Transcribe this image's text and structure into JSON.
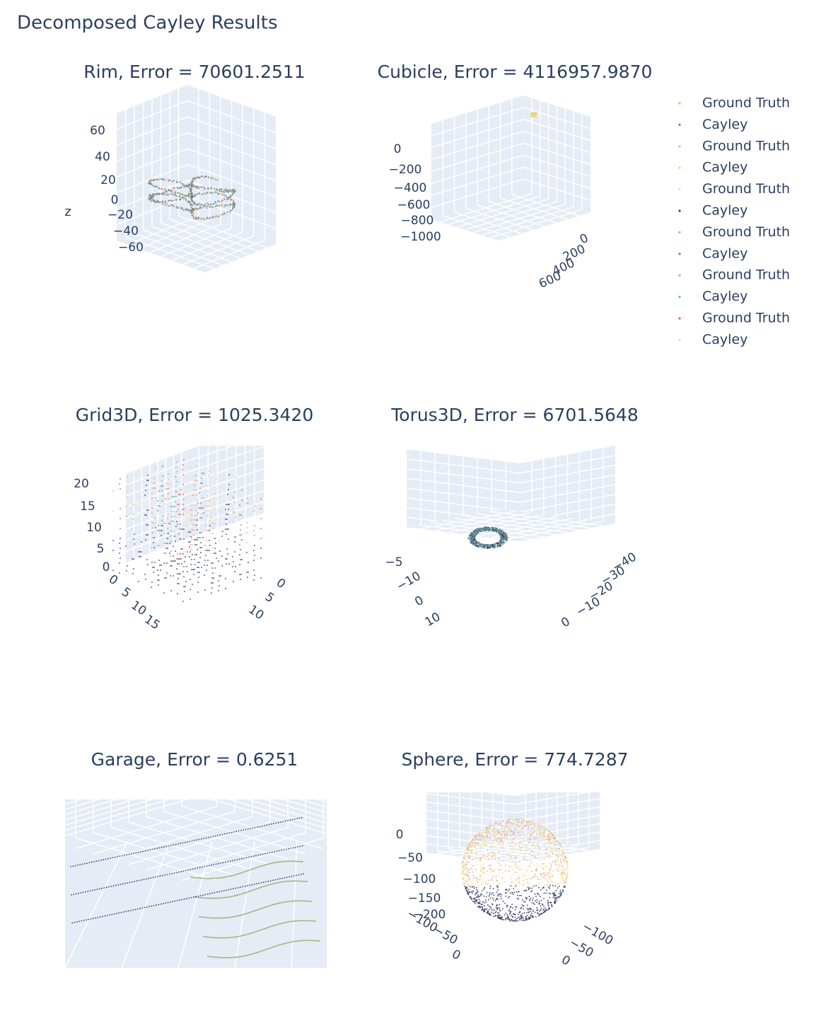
{
  "title": "Decomposed Cayley Results",
  "legend": [
    {
      "name": "Ground Truth",
      "color": "#f4a582"
    },
    {
      "name": "Cayley",
      "color": "#5b8a8f"
    },
    {
      "name": "Ground Truth",
      "color": "#f8b08a"
    },
    {
      "name": "Cayley",
      "color": "#e6d86b"
    },
    {
      "name": "Ground Truth",
      "color": "#f2d4cf"
    },
    {
      "name": "Cayley",
      "color": "#3c3f6e"
    },
    {
      "name": "Ground Truth",
      "color": "#f29f75"
    },
    {
      "name": "Cayley",
      "color": "#5d8c82"
    },
    {
      "name": "Ground Truth",
      "color": "#f2a05a"
    },
    {
      "name": "Cayley",
      "color": "#6fb8a0"
    },
    {
      "name": "Ground Truth",
      "color": "#ef5a3c"
    },
    {
      "name": "Cayley",
      "color": "#f1e38a"
    }
  ],
  "chart_data": [
    {
      "type": "scatter3d",
      "title": "Rim, Error = 70601.2511",
      "zaxis_title": "z",
      "zticks": [
        60,
        40,
        20,
        0,
        {
          "value": -20,
          "label": "−20"
        },
        {
          "value": -40,
          "label": "−40"
        },
        {
          "value": -60,
          "label": "−60"
        }
      ]
    },
    {
      "type": "scatter3d",
      "title": "Cubicle, Error = 4116957.9870",
      "zticks": [
        0,
        {
          "value": -200,
          "label": "−200"
        },
        {
          "value": -400,
          "label": "−400"
        },
        {
          "value": -600,
          "label": "−600"
        },
        {
          "value": -800,
          "label": "−800"
        },
        {
          "value": -1000,
          "label": "−1000"
        }
      ],
      "xticks": [
        0,
        200,
        400,
        600
      ]
    },
    {
      "type": "scatter3d",
      "title": "Grid3D, Error = 1025.3420",
      "zticks": [
        20,
        15,
        10,
        5,
        0
      ],
      "xticks": [
        0,
        5,
        10,
        15
      ],
      "yticks": [
        0,
        5,
        10
      ]
    },
    {
      "type": "scatter3d",
      "title": "Torus3D, Error = 6701.5648",
      "zticks": [
        {
          "value": -5,
          "label": "−5"
        }
      ],
      "yticks": [
        {
          "value": -10,
          "label": "−10"
        },
        0,
        10
      ],
      "xticks": [
        {
          "value": -40,
          "label": "−40"
        },
        {
          "value": -30,
          "label": "−30"
        },
        {
          "value": -20,
          "label": "−20"
        },
        {
          "value": -10,
          "label": "−10"
        },
        0
      ]
    },
    {
      "type": "scatter3d",
      "title": "Garage, Error = 0.6251"
    },
    {
      "type": "scatter3d",
      "title": "Sphere, Error = 774.7287",
      "zticks": [
        0,
        {
          "value": -50,
          "label": "−50"
        },
        {
          "value": -100,
          "label": "−100"
        },
        {
          "value": -150,
          "label": "−150"
        },
        {
          "value": -200,
          "label": "−200"
        }
      ],
      "yticks": [
        {
          "value": -100,
          "label": "−100"
        },
        {
          "value": -50,
          "label": "−50"
        },
        0
      ],
      "xticks": [
        {
          "value": -100,
          "label": "−100"
        },
        {
          "value": -50,
          "label": "−50"
        },
        0
      ]
    }
  ]
}
